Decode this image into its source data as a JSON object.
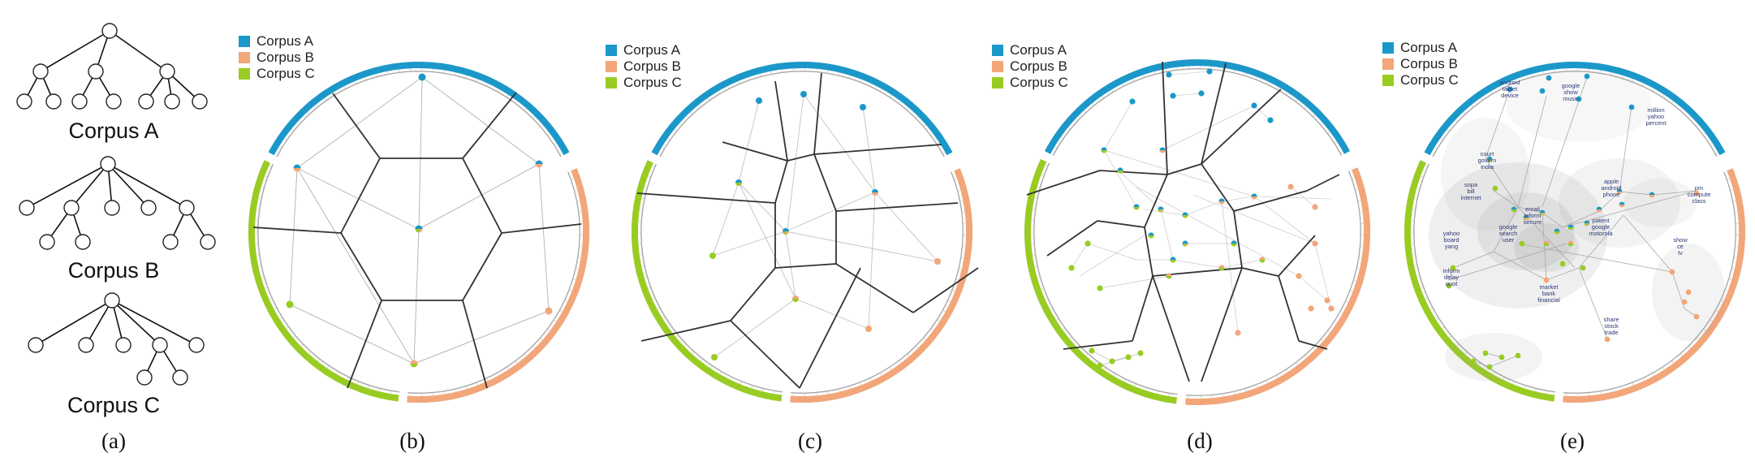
{
  "corpora": [
    {
      "name": "Corpus A",
      "color": "#1b98c9"
    },
    {
      "name": "Corpus B",
      "color": "#f2a679"
    },
    {
      "name": "Corpus C",
      "color": "#99cc22"
    }
  ],
  "tree_titles": [
    "Corpus A",
    "Corpus B",
    "Corpus C"
  ],
  "panel_labels": [
    "(a)",
    "(b)",
    "(c)",
    "(d)",
    "(e)"
  ],
  "word_labels": [
    [
      "android",
      "tablet",
      "device"
    ],
    [
      "google",
      "show",
      "music"
    ],
    [
      "million",
      "yahoo",
      "percent"
    ],
    [
      "court",
      "govern",
      "india"
    ],
    [
      "sopa",
      "bill",
      "internet"
    ],
    [
      "apple",
      "android",
      "phone"
    ],
    [
      "pm",
      "compute",
      "class"
    ],
    [
      "email",
      "inform",
      "secure"
    ],
    [
      "google",
      "search",
      "user"
    ],
    [
      "patent",
      "google",
      "motorola"
    ],
    [
      "yahoo",
      "board",
      "yang"
    ],
    [
      "show",
      "ce",
      "tv"
    ],
    [
      "inform",
      "delay",
      "quot"
    ],
    [
      "market",
      "bank",
      "financial"
    ],
    [
      "share",
      "stock",
      "trade"
    ]
  ]
}
